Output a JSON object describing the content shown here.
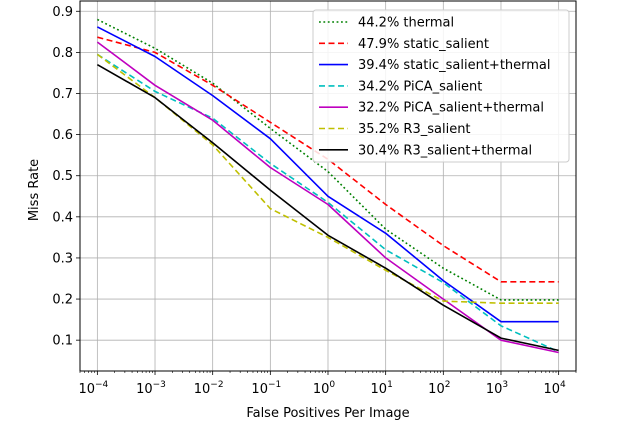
{
  "chart_data": {
    "type": "line",
    "title": "",
    "xlabel": "False Positives Per Image",
    "ylabel": "Miss Rate",
    "xscale": "log",
    "xlim": [
      5e-05,
      20000
    ],
    "ylim": [
      0.025,
      0.925
    ],
    "grid": true,
    "legend_position": "top-right",
    "x_ticks": [
      {
        "value": 0.0001,
        "base": "10",
        "exp": "−4"
      },
      {
        "value": 0.001,
        "base": "10",
        "exp": "−3"
      },
      {
        "value": 0.01,
        "base": "10",
        "exp": "−2"
      },
      {
        "value": 0.1,
        "base": "10",
        "exp": "−1"
      },
      {
        "value": 1,
        "base": "10",
        "exp": "0"
      },
      {
        "value": 10,
        "base": "10",
        "exp": "1"
      },
      {
        "value": 100,
        "base": "10",
        "exp": "2"
      },
      {
        "value": 1000,
        "base": "10",
        "exp": "3"
      },
      {
        "value": 10000,
        "base": "10",
        "exp": "4"
      }
    ],
    "y_ticks": [
      {
        "value": 0.1,
        "label": "0.1"
      },
      {
        "value": 0.2,
        "label": "0.2"
      },
      {
        "value": 0.3,
        "label": "0.3"
      },
      {
        "value": 0.4,
        "label": "0.4"
      },
      {
        "value": 0.5,
        "label": "0.5"
      },
      {
        "value": 0.6,
        "label": "0.6"
      },
      {
        "value": 0.7,
        "label": "0.7"
      },
      {
        "value": 0.8,
        "label": "0.8"
      },
      {
        "value": 0.9,
        "label": "0.9"
      }
    ],
    "series": [
      {
        "name": "44.2% thermal",
        "color": "#008000",
        "style": "dotted",
        "x": [
          0.0001,
          0.001,
          0.01,
          0.1,
          1,
          10,
          100,
          1000,
          10000
        ],
        "y": [
          0.88,
          0.81,
          0.725,
          0.615,
          0.51,
          0.37,
          0.275,
          0.198,
          0.198
        ]
      },
      {
        "name": " 47.9% static_salient",
        "color": "#ff0000",
        "style": "dashed",
        "x": [
          0.0001,
          0.001,
          0.01,
          0.1,
          1,
          10,
          100,
          1000,
          10000
        ],
        "y": [
          0.837,
          0.8,
          0.72,
          0.63,
          0.54,
          0.43,
          0.33,
          0.242,
          0.242
        ]
      },
      {
        "name": "39.4% static_salient+thermal",
        "color": "#0000ff",
        "style": "solid",
        "x": [
          0.0001,
          0.001,
          0.01,
          0.1,
          1,
          10,
          100,
          1000,
          10000
        ],
        "y": [
          0.862,
          0.79,
          0.695,
          0.59,
          0.45,
          0.36,
          0.245,
          0.145,
          0.145
        ]
      },
      {
        "name": "34.2% PiCA_salient",
        "color": "#00bfbf",
        "style": "dashed",
        "x": [
          0.0001,
          0.001,
          0.01,
          0.1,
          1,
          10,
          100,
          1000,
          10000
        ],
        "y": [
          0.795,
          0.705,
          0.64,
          0.53,
          0.435,
          0.32,
          0.24,
          0.135,
          0.072
        ]
      },
      {
        "name": "32.2% PiCA_salient+thermal",
        "color": "#bf00bf",
        "style": "solid",
        "x": [
          0.0001,
          0.001,
          0.01,
          0.1,
          1,
          10,
          100,
          1000,
          10000
        ],
        "y": [
          0.825,
          0.72,
          0.635,
          0.52,
          0.43,
          0.3,
          0.2,
          0.1,
          0.07
        ]
      },
      {
        "name": "35.2% R3_salient",
        "color": "#bfbf00",
        "style": "dashed",
        "x": [
          0.0001,
          0.001,
          0.01,
          0.1,
          1,
          10,
          100,
          1000,
          10000
        ],
        "y": [
          0.795,
          0.69,
          0.575,
          0.42,
          0.35,
          0.27,
          0.195,
          0.19,
          0.19
        ]
      },
      {
        "name": "30.4% R3_salient+thermal",
        "color": "#000000",
        "style": "solid",
        "x": [
          0.0001,
          0.001,
          0.01,
          0.1,
          1,
          10,
          100,
          1000,
          10000
        ],
        "y": [
          0.77,
          0.69,
          0.58,
          0.465,
          0.355,
          0.275,
          0.185,
          0.105,
          0.075
        ]
      }
    ]
  }
}
